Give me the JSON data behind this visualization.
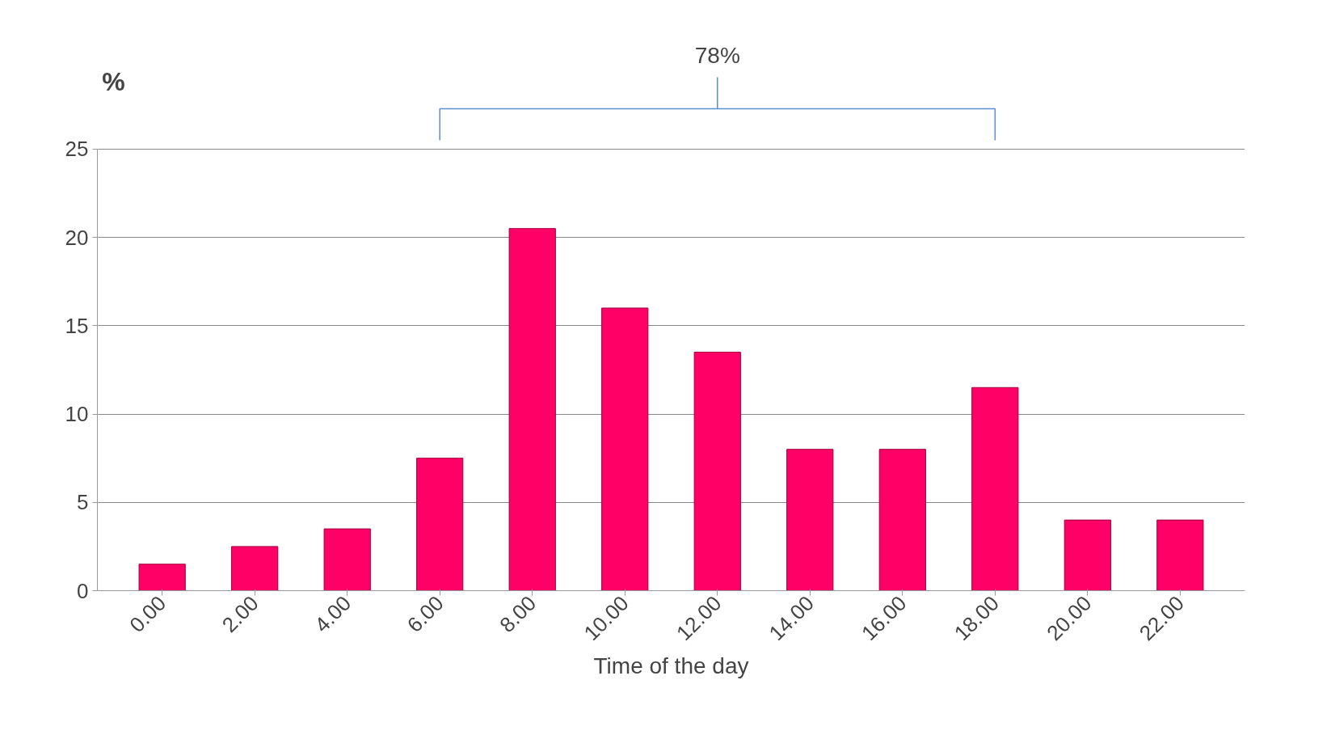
{
  "chart_data": {
    "type": "bar",
    "xlabel": "Time of the day",
    "ylabel": "%",
    "categories": [
      "0.00",
      "2.00",
      "4.00",
      "6.00",
      "8.00",
      "10.00",
      "12.00",
      "14.00",
      "16.00",
      "18.00",
      "20.00",
      "22.00"
    ],
    "values": [
      1.5,
      2.5,
      3.5,
      7.5,
      20.5,
      16,
      13.5,
      8,
      8,
      11.5,
      4,
      4
    ],
    "color": "#ff0066",
    "ylim": [
      0,
      25
    ],
    "yticks": [
      0,
      5,
      10,
      15,
      20,
      25
    ],
    "grid": "y",
    "annotations": [
      "78%"
    ]
  }
}
